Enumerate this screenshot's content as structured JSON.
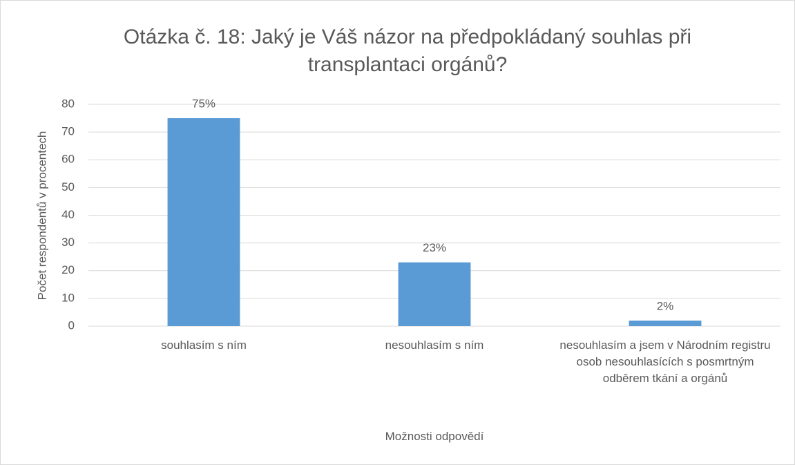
{
  "chart_data": {
    "type": "bar",
    "title": "Otázka č. 18: Jaký je Váš názor na předpokládaný souhlas při transplantaci orgánů?",
    "y_label": "Počet respondentů v procentech",
    "x_label": "Možnosti odpovědí",
    "categories": [
      "souhlasím s ním",
      "nesouhlasím s ním",
      "nesouhlasím a jsem v Národním registru osob nesouhlasících s posmrtným odběrem tkání a orgánů"
    ],
    "values": [
      75,
      23,
      2
    ],
    "value_labels": [
      "75%",
      "23%",
      "2%"
    ],
    "color": "#5b9bd5",
    "ylim": [
      0,
      80
    ],
    "yticks": [
      0,
      10,
      20,
      30,
      40,
      50,
      60,
      70,
      80
    ],
    "grid": true
  }
}
